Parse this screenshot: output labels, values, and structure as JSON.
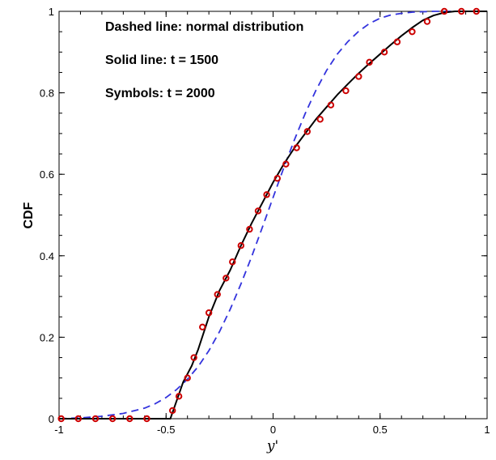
{
  "chart_data": {
    "type": "line",
    "title": "",
    "xlabel": "y'",
    "ylabel": "CDF",
    "xlim": [
      -1,
      1
    ],
    "ylim": [
      0,
      1
    ],
    "grid": false,
    "x_ticks": [
      -1,
      -0.5,
      0,
      0.5,
      1
    ],
    "x_tick_labels": [
      "-1",
      "-0.5",
      "0",
      "0.5",
      "1"
    ],
    "y_ticks": [
      0,
      0.2,
      0.4,
      0.6,
      0.8,
      1
    ],
    "y_tick_labels": [
      "0",
      "0.2",
      "0.4",
      "0.6",
      "0.8",
      "1"
    ],
    "annotations": [
      "Dashed line: normal distribution",
      "Solid line: t = 1500",
      "Symbols:  t = 2000"
    ],
    "series": [
      {
        "style": "dashed",
        "color": "#3333dd",
        "x": [
          -1,
          -0.9,
          -0.8,
          -0.7,
          -0.6,
          -0.55,
          -0.5,
          -0.45,
          -0.4,
          -0.35,
          -0.3,
          -0.25,
          -0.2,
          -0.15,
          -0.1,
          -0.05,
          0,
          0.05,
          0.1,
          0.15,
          0.2,
          0.25,
          0.3,
          0.35,
          0.4,
          0.45,
          0.5,
          0.55,
          0.6,
          0.65,
          0.7,
          0.75,
          0.8,
          0.85,
          0.9,
          1
        ],
        "y": [
          0.0,
          0.002,
          0.006,
          0.013,
          0.026,
          0.037,
          0.052,
          0.072,
          0.097,
          0.128,
          0.167,
          0.214,
          0.269,
          0.331,
          0.398,
          0.47,
          0.543,
          0.616,
          0.685,
          0.749,
          0.806,
          0.855,
          0.895,
          0.926,
          0.951,
          0.97,
          0.983,
          0.991,
          0.995,
          0.998,
          0.999,
          1.0,
          1.0,
          1.0,
          1.0,
          1.0
        ]
      },
      {
        "style": "solid",
        "color": "#000000",
        "x": [
          -1,
          -0.9,
          -0.8,
          -0.7,
          -0.6,
          -0.55,
          -0.5,
          -0.48,
          -0.46,
          -0.44,
          -0.42,
          -0.4,
          -0.38,
          -0.35,
          -0.3,
          -0.25,
          -0.2,
          -0.15,
          -0.1,
          -0.05,
          0,
          0.05,
          0.1,
          0.15,
          0.2,
          0.25,
          0.3,
          0.35,
          0.4,
          0.45,
          0.5,
          0.55,
          0.6,
          0.65,
          0.7,
          0.75,
          0.8,
          0.85,
          0.9,
          0.95,
          1
        ],
        "y": [
          0,
          0,
          0,
          0,
          0,
          0,
          0,
          0.0,
          0.03,
          0.06,
          0.09,
          0.11,
          0.13,
          0.17,
          0.25,
          0.315,
          0.365,
          0.425,
          0.48,
          0.53,
          0.58,
          0.625,
          0.665,
          0.7,
          0.735,
          0.765,
          0.795,
          0.822,
          0.848,
          0.872,
          0.895,
          0.918,
          0.94,
          0.96,
          0.978,
          0.99,
          0.997,
          1.0,
          1.0,
          1.0,
          1.0
        ]
      },
      {
        "style": "markers",
        "color": "#cc0000",
        "x": [
          -0.99,
          -0.91,
          -0.83,
          -0.75,
          -0.67,
          -0.59,
          -0.47,
          -0.44,
          -0.4,
          -0.37,
          -0.33,
          -0.3,
          -0.26,
          -0.22,
          -0.19,
          -0.15,
          -0.11,
          -0.07,
          -0.03,
          0.02,
          0.06,
          0.11,
          0.16,
          0.22,
          0.27,
          0.34,
          0.4,
          0.45,
          0.52,
          0.58,
          0.65,
          0.72,
          0.8,
          0.88,
          0.95
        ],
        "y": [
          0,
          0,
          0,
          0,
          0,
          0,
          0.02,
          0.055,
          0.1,
          0.15,
          0.225,
          0.26,
          0.305,
          0.345,
          0.385,
          0.425,
          0.465,
          0.51,
          0.55,
          0.59,
          0.625,
          0.665,
          0.705,
          0.735,
          0.77,
          0.805,
          0.84,
          0.875,
          0.9,
          0.925,
          0.95,
          0.975,
          1.0,
          1.0,
          1.0
        ]
      }
    ]
  }
}
